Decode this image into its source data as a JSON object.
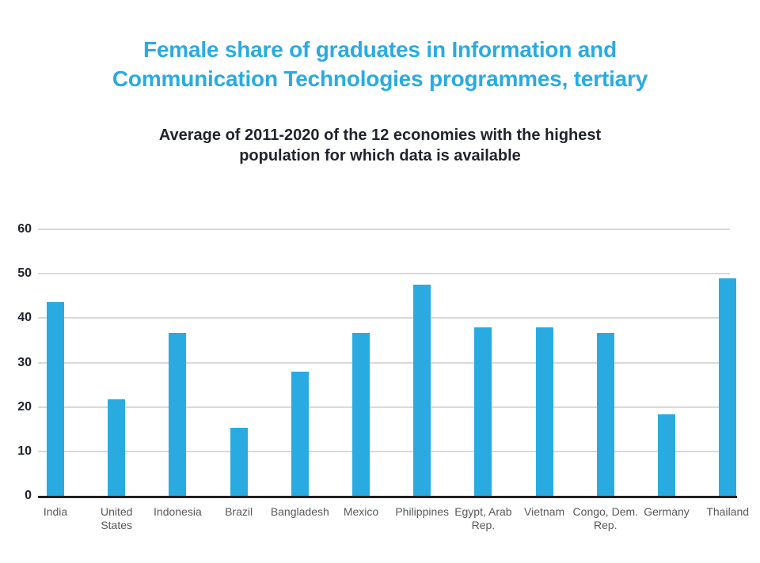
{
  "header": {
    "title_lines": [
      "Female share of graduates in Information and",
      "Communication Technologies programmes, tertiary"
    ],
    "title_color": "#29ABE2",
    "subtitle_lines": [
      "Average of 2011-2020 of the 12 economies with the highest",
      "population for which data is available"
    ],
    "subtitle_color": "#21242E"
  },
  "chart_data": {
    "type": "bar",
    "title": "Female share of graduates in Information and Communication Technologies programmes, tertiary",
    "subtitle": "Average of 2011-2020 of the 12 economies with the highest population for which data is available",
    "categories": [
      "India",
      "United States",
      "Indonesia",
      "Brazil",
      "Bangladesh",
      "Mexico",
      "Philippines",
      "Egypt, Arab Rep.",
      "Vietnam",
      "Congo, Dem. Rep.",
      "Germany",
      "Thailand"
    ],
    "category_label_lines": [
      [
        "India"
      ],
      [
        "United",
        "States"
      ],
      [
        "Indonesia"
      ],
      [
        "Brazil"
      ],
      [
        "Bangladesh"
      ],
      [
        "Mexico"
      ],
      [
        "Philippines"
      ],
      [
        "Egypt, Arab",
        "Rep."
      ],
      [
        "Vietnam"
      ],
      [
        "Congo, Dem.",
        "Rep."
      ],
      [
        "Germany"
      ],
      [
        "Thailand"
      ]
    ],
    "values": [
      43.7,
      21.8,
      36.6,
      15.4,
      27.9,
      36.6,
      47.5,
      37.9,
      37.9,
      36.6,
      18.3,
      49.0
    ],
    "ylabel": "",
    "xlabel": "",
    "ylim": [
      0,
      60
    ],
    "yticks": [
      0,
      10,
      20,
      30,
      40,
      50,
      60
    ],
    "grid": true,
    "legend_position": "none",
    "bar_color": "#29ABE2",
    "gridline_color": "#D9D9D9",
    "axis_line_color": "#231F20",
    "ytick_label_color": "#21242E",
    "category_label_color": "#58585B"
  }
}
